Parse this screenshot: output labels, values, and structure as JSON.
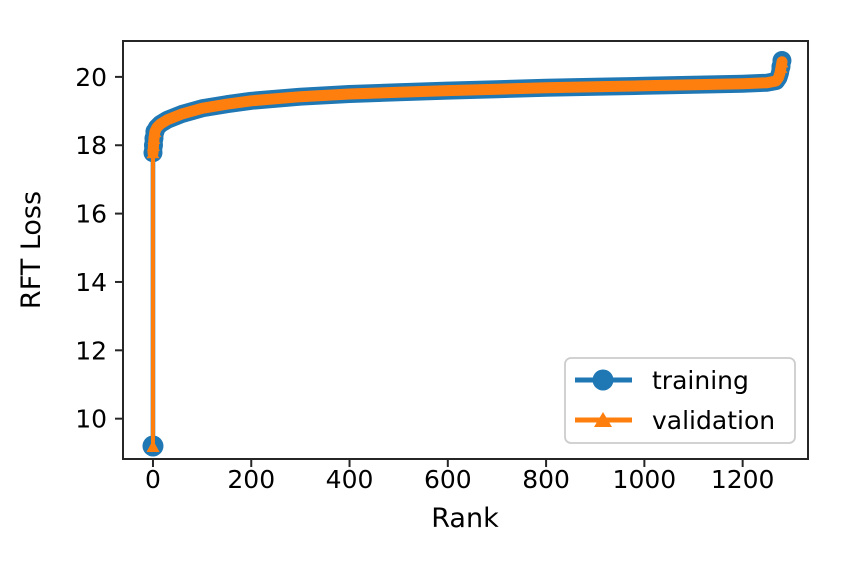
{
  "figure": {
    "background": "#ffffff",
    "axis_color": "#262626",
    "text_color": "#000000"
  },
  "chart_data": {
    "type": "line",
    "title": "",
    "xlabel": "Rank",
    "ylabel": "RFT Loss",
    "xlim": [
      -61,
      1333
    ],
    "ylim": [
      8.82,
      21.05
    ],
    "x_ticks": [
      0,
      200,
      400,
      600,
      800,
      1000,
      1200
    ],
    "y_ticks": [
      10,
      12,
      14,
      16,
      18,
      20
    ],
    "grid": false,
    "note": "training and validation curves overlap almost exactly; loss sorted ascending by rank with an outlier at rank 0 and a spike at the final ranks",
    "legend": {
      "position": "lower right",
      "entries": [
        {
          "label": "training",
          "color": "#1f77b4",
          "marker": "circle"
        },
        {
          "label": "validation",
          "color": "#ff7f0e",
          "marker": "triangle-up"
        }
      ]
    },
    "series": [
      {
        "name": "training",
        "color": "#1f77b4",
        "marker": "circle",
        "band_stroke": 18,
        "outlier_point": {
          "rank": 0,
          "loss": 9.2
        },
        "points": [
          [
            0,
            17.78
          ],
          [
            1,
            18.0
          ],
          [
            2,
            18.2
          ],
          [
            4,
            18.4
          ],
          [
            8,
            18.52
          ],
          [
            15,
            18.62
          ],
          [
            30,
            18.75
          ],
          [
            60,
            18.92
          ],
          [
            100,
            19.08
          ],
          [
            150,
            19.2
          ],
          [
            200,
            19.3
          ],
          [
            300,
            19.42
          ],
          [
            400,
            19.5
          ],
          [
            500,
            19.55
          ],
          [
            600,
            19.6
          ],
          [
            700,
            19.64
          ],
          [
            800,
            19.68
          ],
          [
            900,
            19.71
          ],
          [
            1000,
            19.74
          ],
          [
            1100,
            19.77
          ],
          [
            1200,
            19.8
          ],
          [
            1250,
            19.83
          ],
          [
            1268,
            19.88
          ],
          [
            1273,
            19.98
          ],
          [
            1276,
            20.12
          ],
          [
            1278,
            20.3
          ],
          [
            1280,
            20.48
          ]
        ]
      },
      {
        "name": "validation",
        "color": "#ff7f0e",
        "marker": "triangle-up",
        "band_stroke": 11,
        "outlier_point": {
          "rank": 0,
          "loss": 9.2
        },
        "points": [
          [
            0,
            17.78
          ],
          [
            1,
            18.0
          ],
          [
            2,
            18.2
          ],
          [
            4,
            18.4
          ],
          [
            8,
            18.52
          ],
          [
            15,
            18.62
          ],
          [
            30,
            18.75
          ],
          [
            60,
            18.92
          ],
          [
            100,
            19.08
          ],
          [
            150,
            19.2
          ],
          [
            200,
            19.3
          ],
          [
            300,
            19.42
          ],
          [
            400,
            19.5
          ],
          [
            500,
            19.55
          ],
          [
            600,
            19.6
          ],
          [
            700,
            19.64
          ],
          [
            800,
            19.68
          ],
          [
            900,
            19.71
          ],
          [
            1000,
            19.74
          ],
          [
            1100,
            19.77
          ],
          [
            1200,
            19.8
          ],
          [
            1250,
            19.83
          ],
          [
            1268,
            19.88
          ],
          [
            1273,
            19.98
          ],
          [
            1276,
            20.12
          ],
          [
            1278,
            20.28
          ],
          [
            1280,
            20.44
          ]
        ]
      }
    ]
  }
}
